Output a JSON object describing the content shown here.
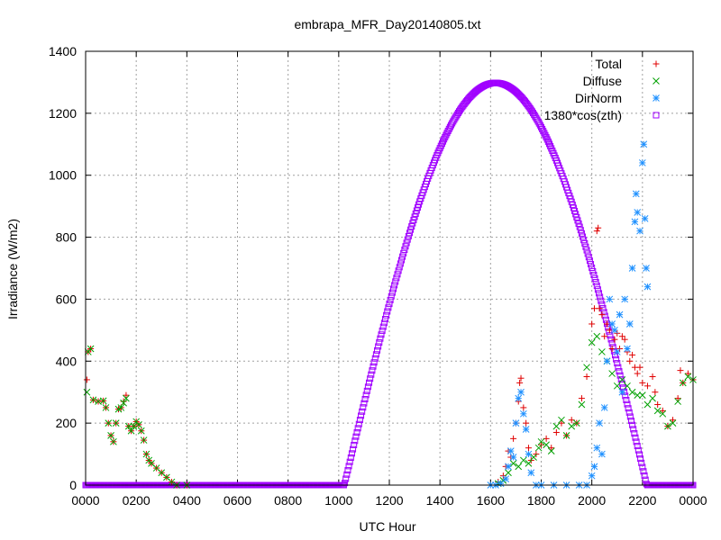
{
  "chart_data": {
    "type": "scatter",
    "title": "embrapa_MFR_Day20140805.txt",
    "xlabel": "UTC Hour",
    "ylabel": "Irradiance (W/m2)",
    "xlim": [
      0,
      24
    ],
    "ylim": [
      0,
      1400
    ],
    "grid": true,
    "legend_position": "top-right",
    "x_ticks": [
      {
        "value": 0,
        "label": "0000"
      },
      {
        "value": 2,
        "label": "0200"
      },
      {
        "value": 4,
        "label": "0400"
      },
      {
        "value": 6,
        "label": "0600"
      },
      {
        "value": 8,
        "label": "0800"
      },
      {
        "value": 10,
        "label": "1000"
      },
      {
        "value": 12,
        "label": "1200"
      },
      {
        "value": 14,
        "label": "1400"
      },
      {
        "value": 16,
        "label": "1600"
      },
      {
        "value": 18,
        "label": "1800"
      },
      {
        "value": 20,
        "label": "2000"
      },
      {
        "value": 22,
        "label": "2200"
      },
      {
        "value": 24,
        "label": "0000"
      }
    ],
    "y_ticks": [
      0,
      200,
      400,
      600,
      800,
      1000,
      1200,
      1400
    ],
    "series": [
      {
        "name": "Total",
        "marker": "plus",
        "color": "#e00000",
        "points": [
          [
            0.05,
            340
          ],
          [
            0.1,
            430
          ],
          [
            0.2,
            440
          ],
          [
            0.3,
            275
          ],
          [
            0.5,
            270
          ],
          [
            0.7,
            272
          ],
          [
            0.8,
            250
          ],
          [
            0.9,
            200
          ],
          [
            1.0,
            160
          ],
          [
            1.1,
            140
          ],
          [
            1.2,
            200
          ],
          [
            1.3,
            245
          ],
          [
            1.4,
            250
          ],
          [
            1.5,
            270
          ],
          [
            1.6,
            290
          ],
          [
            1.7,
            190
          ],
          [
            1.8,
            175
          ],
          [
            1.9,
            190
          ],
          [
            2.0,
            205
          ],
          [
            2.1,
            195
          ],
          [
            2.2,
            175
          ],
          [
            2.3,
            145
          ],
          [
            2.4,
            100
          ],
          [
            2.5,
            80
          ],
          [
            2.6,
            70
          ],
          [
            2.8,
            55
          ],
          [
            3.0,
            40
          ],
          [
            3.2,
            25
          ],
          [
            3.4,
            10
          ],
          [
            3.6,
            0
          ],
          [
            4.0,
            0
          ],
          [
            16.3,
            10
          ],
          [
            16.5,
            30
          ],
          [
            16.6,
            60
          ],
          [
            16.7,
            110
          ],
          [
            16.8,
            90
          ],
          [
            16.9,
            150
          ],
          [
            17.0,
            200
          ],
          [
            17.1,
            270
          ],
          [
            17.15,
            330
          ],
          [
            17.2,
            345
          ],
          [
            17.3,
            250
          ],
          [
            17.4,
            200
          ],
          [
            17.5,
            120
          ],
          [
            17.6,
            80
          ],
          [
            17.8,
            100
          ],
          [
            18.0,
            130
          ],
          [
            18.2,
            150
          ],
          [
            18.4,
            120
          ],
          [
            18.6,
            170
          ],
          [
            18.8,
            200
          ],
          [
            19.0,
            160
          ],
          [
            19.2,
            210
          ],
          [
            19.4,
            200
          ],
          [
            19.6,
            280
          ],
          [
            19.8,
            350
          ],
          [
            20.0,
            520
          ],
          [
            20.1,
            570
          ],
          [
            20.2,
            820
          ],
          [
            20.25,
            830
          ],
          [
            20.3,
            570
          ],
          [
            20.4,
            550
          ],
          [
            20.5,
            480
          ],
          [
            20.6,
            520
          ],
          [
            20.7,
            500
          ],
          [
            20.8,
            440
          ],
          [
            20.9,
            470
          ],
          [
            21.0,
            490
          ],
          [
            21.1,
            440
          ],
          [
            21.2,
            480
          ],
          [
            21.3,
            470
          ],
          [
            21.4,
            430
          ],
          [
            21.5,
            400
          ],
          [
            21.6,
            420
          ],
          [
            21.7,
            380
          ],
          [
            21.8,
            360
          ],
          [
            21.9,
            380
          ],
          [
            22.0,
            330
          ],
          [
            22.2,
            320
          ],
          [
            22.4,
            350
          ],
          [
            22.5,
            300
          ],
          [
            22.6,
            260
          ],
          [
            22.8,
            240
          ],
          [
            23.0,
            190
          ],
          [
            23.2,
            210
          ],
          [
            23.4,
            280
          ],
          [
            23.5,
            370
          ],
          [
            23.6,
            330
          ],
          [
            23.8,
            360
          ],
          [
            24.0,
            340
          ]
        ]
      },
      {
        "name": "Diffuse",
        "marker": "cross",
        "color": "#00a000",
        "points": [
          [
            0.05,
            300
          ],
          [
            0.1,
            430
          ],
          [
            0.2,
            440
          ],
          [
            0.3,
            275
          ],
          [
            0.5,
            270
          ],
          [
            0.7,
            272
          ],
          [
            0.8,
            250
          ],
          [
            0.9,
            200
          ],
          [
            1.0,
            160
          ],
          [
            1.1,
            140
          ],
          [
            1.2,
            200
          ],
          [
            1.3,
            245
          ],
          [
            1.4,
            250
          ],
          [
            1.5,
            265
          ],
          [
            1.6,
            280
          ],
          [
            1.7,
            190
          ],
          [
            1.8,
            175
          ],
          [
            1.9,
            190
          ],
          [
            2.0,
            205
          ],
          [
            2.1,
            195
          ],
          [
            2.2,
            175
          ],
          [
            2.3,
            145
          ],
          [
            2.4,
            100
          ],
          [
            2.5,
            80
          ],
          [
            2.6,
            70
          ],
          [
            2.8,
            55
          ],
          [
            3.0,
            40
          ],
          [
            3.2,
            25
          ],
          [
            3.4,
            10
          ],
          [
            3.6,
            0
          ],
          [
            4.0,
            0
          ],
          [
            16.3,
            5
          ],
          [
            16.5,
            15
          ],
          [
            16.7,
            40
          ],
          [
            16.9,
            70
          ],
          [
            17.1,
            60
          ],
          [
            17.3,
            80
          ],
          [
            17.5,
            70
          ],
          [
            17.7,
            90
          ],
          [
            17.9,
            120
          ],
          [
            18.0,
            140
          ],
          [
            18.2,
            130
          ],
          [
            18.4,
            110
          ],
          [
            18.6,
            190
          ],
          [
            18.8,
            210
          ],
          [
            19.0,
            160
          ],
          [
            19.2,
            190
          ],
          [
            19.4,
            200
          ],
          [
            19.6,
            260
          ],
          [
            19.8,
            380
          ],
          [
            20.0,
            460
          ],
          [
            20.2,
            480
          ],
          [
            20.4,
            430
          ],
          [
            20.6,
            400
          ],
          [
            20.8,
            360
          ],
          [
            21.0,
            320
          ],
          [
            21.2,
            340
          ],
          [
            21.4,
            320
          ],
          [
            21.6,
            300
          ],
          [
            21.8,
            290
          ],
          [
            22.0,
            290
          ],
          [
            22.2,
            260
          ],
          [
            22.4,
            280
          ],
          [
            22.6,
            240
          ],
          [
            22.8,
            230
          ],
          [
            23.0,
            190
          ],
          [
            23.2,
            200
          ],
          [
            23.4,
            270
          ],
          [
            23.6,
            330
          ],
          [
            23.8,
            350
          ],
          [
            24.0,
            340
          ]
        ]
      },
      {
        "name": "DirNorm",
        "marker": "star",
        "color": "#1e90ff",
        "points": [
          [
            16.0,
            0
          ],
          [
            16.2,
            0
          ],
          [
            16.4,
            5
          ],
          [
            16.6,
            20
          ],
          [
            16.7,
            60
          ],
          [
            16.8,
            110
          ],
          [
            16.9,
            90
          ],
          [
            17.0,
            200
          ],
          [
            17.1,
            280
          ],
          [
            17.2,
            300
          ],
          [
            17.3,
            230
          ],
          [
            17.4,
            180
          ],
          [
            17.5,
            100
          ],
          [
            17.6,
            40
          ],
          [
            17.8,
            0
          ],
          [
            18.0,
            0
          ],
          [
            18.5,
            0
          ],
          [
            19.0,
            0
          ],
          [
            19.5,
            0
          ],
          [
            19.8,
            0
          ],
          [
            20.0,
            30
          ],
          [
            20.1,
            60
          ],
          [
            20.2,
            120
          ],
          [
            20.3,
            200
          ],
          [
            20.4,
            100
          ],
          [
            20.5,
            250
          ],
          [
            20.6,
            400
          ],
          [
            20.7,
            600
          ],
          [
            20.8,
            520
          ],
          [
            20.9,
            500
          ],
          [
            21.0,
            430
          ],
          [
            21.1,
            550
          ],
          [
            21.2,
            300
          ],
          [
            21.3,
            600
          ],
          [
            21.4,
            440
          ],
          [
            21.5,
            520
          ],
          [
            21.6,
            700
          ],
          [
            21.7,
            850
          ],
          [
            21.75,
            940
          ],
          [
            21.8,
            880
          ],
          [
            21.9,
            820
          ],
          [
            22.0,
            1040
          ],
          [
            22.05,
            1100
          ],
          [
            22.1,
            860
          ],
          [
            22.15,
            700
          ],
          [
            22.2,
            640
          ]
        ]
      },
      {
        "name": "1380*cos(zth)",
        "marker": "square",
        "color": "#a000ff",
        "points": []
      }
    ],
    "curve_model": {
      "x_start": 10.22,
      "x_end": 22.17,
      "x_peak": 16.2,
      "y_peak": 1298
    }
  }
}
